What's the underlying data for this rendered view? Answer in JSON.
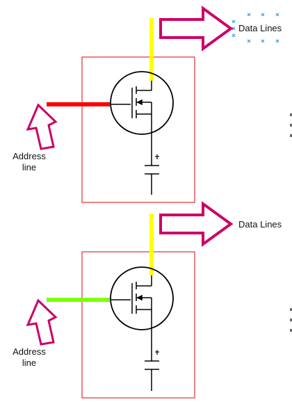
{
  "cells": [
    {
      "address_label_line1": "Address",
      "address_label_line2": "line",
      "data_label": "Data Lines",
      "address_line_color": "#ff0000",
      "data_line_color": "#ffff00"
    },
    {
      "address_label_line1": "Address",
      "address_label_line2": "line",
      "data_label": "Data Lines",
      "address_line_color": "#80ff00",
      "data_line_color": "#ffff00"
    }
  ],
  "colors": {
    "cell_border": "#e03030",
    "arrow": "#cc0066",
    "selection_handle": "#3399dd",
    "circuit": "#000000"
  },
  "icons": {
    "arrow": "hollow-arrow-icon",
    "transistor": "mosfet-icon",
    "capacitor": "capacitor-icon",
    "selection": "selection-handle-icon"
  }
}
